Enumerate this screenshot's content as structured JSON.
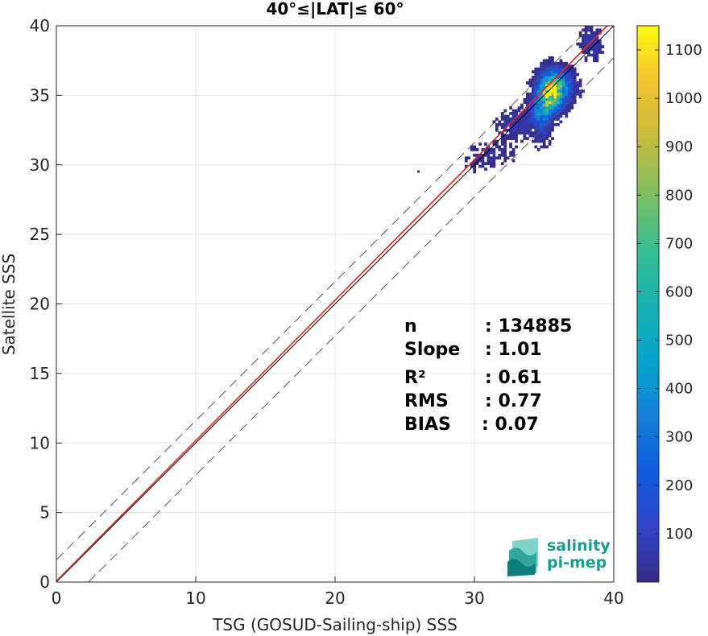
{
  "chart_data": {
    "type": "heatmap",
    "title": "40°≤|LAT|≤ 60°",
    "xlabel": "TSG (GOSUD-Sailing-ship) SSS",
    "ylabel": "Satellite SSS",
    "xlim": [
      0,
      40
    ],
    "ylim": [
      0,
      40
    ],
    "xticks": [
      0,
      10,
      20,
      30,
      40
    ],
    "yticks": [
      0,
      5,
      10,
      15,
      20,
      25,
      30,
      35,
      40
    ],
    "grid": true,
    "colorbar": {
      "range": [
        0,
        1150
      ],
      "ticks": [
        100,
        200,
        300,
        400,
        500,
        600,
        700,
        800,
        900,
        1000,
        1100
      ],
      "colormap": "parula"
    },
    "lines": [
      {
        "kind": "identity",
        "slope": 1.0,
        "intercept": 0.0,
        "color": "#000000",
        "style": "solid"
      },
      {
        "kind": "fit",
        "slope": 1.01,
        "intercept": 0.07,
        "color": "#e8231e",
        "style": "solid"
      },
      {
        "kind": "bound-upper",
        "slope": 1.0,
        "intercept": 1.6,
        "color": "#555555",
        "style": "dashed"
      },
      {
        "kind": "bound-lower",
        "slope": 1.0,
        "intercept": -2.3,
        "color": "#555555",
        "style": "dashed"
      }
    ],
    "density_clusters": [
      {
        "x": 35.5,
        "y": 35.3,
        "sx": 0.55,
        "sy": 0.75,
        "peak": 1100
      },
      {
        "x": 35.0,
        "y": 34.3,
        "sx": 0.45,
        "sy": 0.7,
        "peak": 320
      },
      {
        "x": 34.8,
        "y": 33.2,
        "sx": 0.35,
        "sy": 0.9,
        "peak": 150
      },
      {
        "x": 34.3,
        "y": 33.8,
        "sx": 0.35,
        "sy": 0.5,
        "peak": 180
      },
      {
        "x": 33.0,
        "y": 32.8,
        "sx": 0.9,
        "sy": 0.6,
        "peak": 60
      },
      {
        "x": 31.2,
        "y": 30.7,
        "sx": 0.9,
        "sy": 0.45,
        "peak": 35
      },
      {
        "x": 30.2,
        "y": 29.9,
        "sx": 0.6,
        "sy": 0.3,
        "peak": 25
      },
      {
        "x": 38.2,
        "y": 38.6,
        "sx": 0.45,
        "sy": 0.6,
        "peak": 70
      },
      {
        "x": 36.5,
        "y": 35.6,
        "sx": 0.5,
        "sy": 0.6,
        "peak": 120
      }
    ],
    "stats": [
      {
        "label": "n",
        "value": ": 134885"
      },
      {
        "label": "Slope",
        "value": ": 1.01"
      },
      {
        "label": "R²",
        "value": ": 0.61"
      },
      {
        "label": "RMS",
        "value": ": 0.77"
      },
      {
        "label": "BIAS",
        "value": ": 0.07"
      }
    ]
  },
  "logo": {
    "line1": "salinity",
    "line2": "pi-mep"
  }
}
